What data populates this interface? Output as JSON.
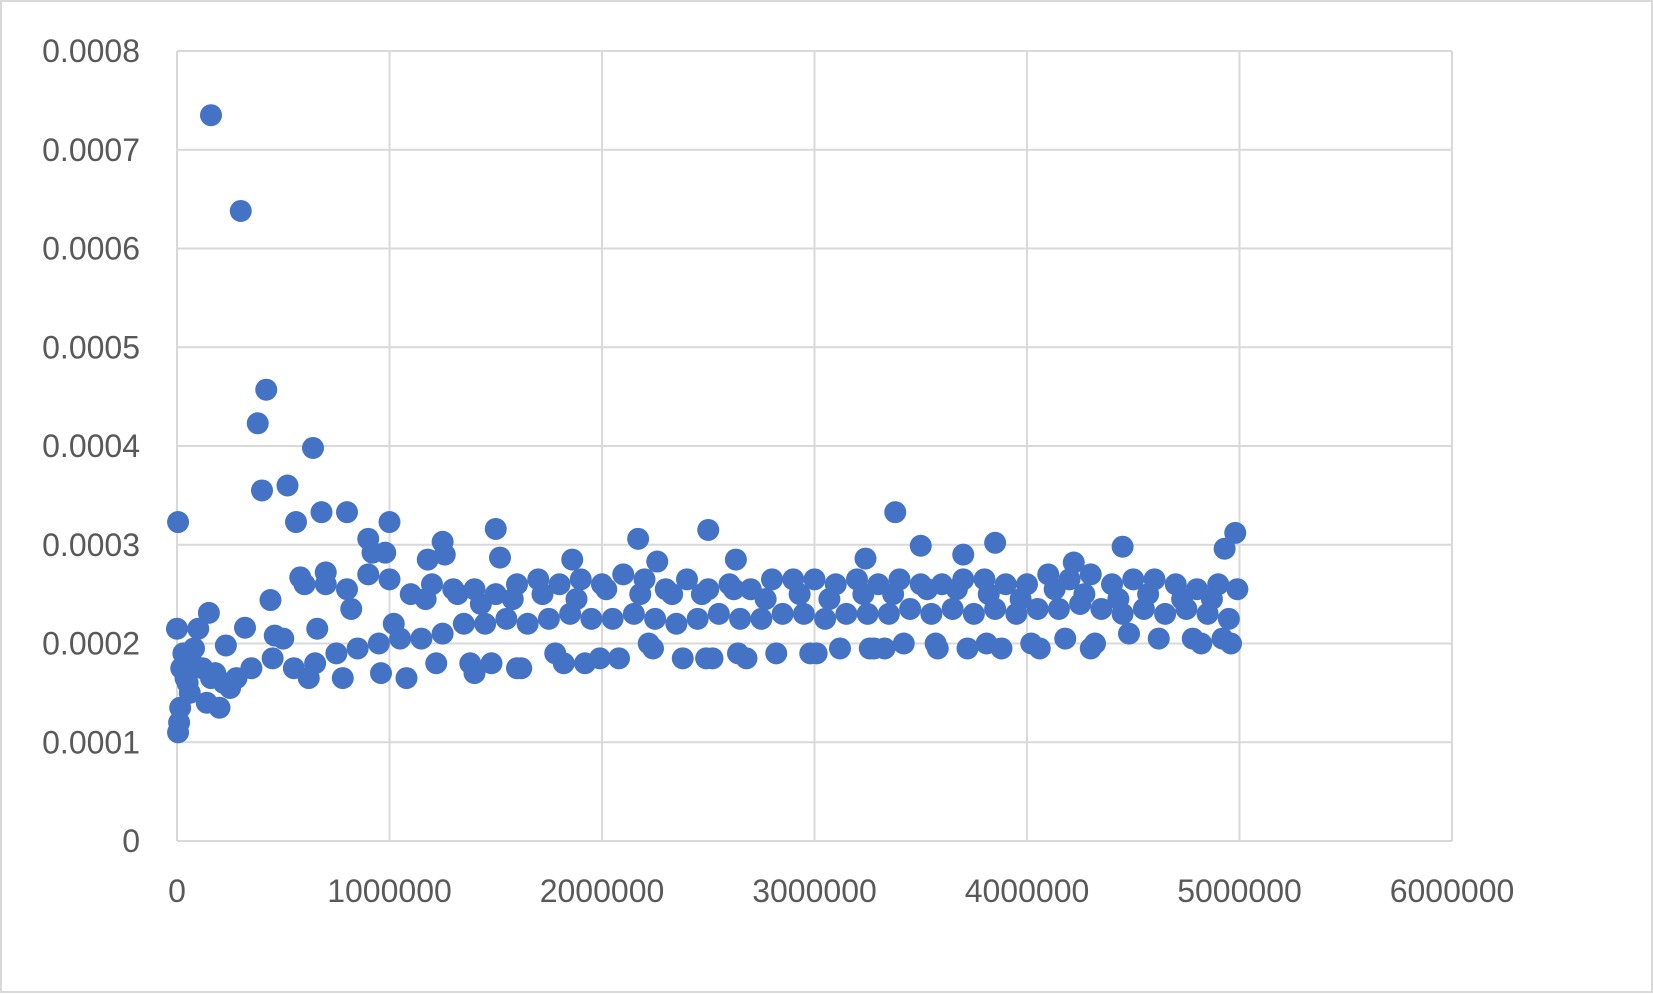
{
  "chart_data": {
    "type": "scatter",
    "title": "",
    "xlabel": "",
    "ylabel": "",
    "xlim": [
      0,
      6000000
    ],
    "ylim": [
      0,
      0.0008
    ],
    "xticks": [
      "0",
      "1000000",
      "2000000",
      "3000000",
      "4000000",
      "5000000",
      "6000000"
    ],
    "yticks": [
      "0",
      "0.0001",
      "0.0002",
      "0.0003",
      "0.0004",
      "0.0005",
      "0.0006",
      "0.0007",
      "0.0008"
    ],
    "grid": true,
    "legend": "none",
    "marker_color": "#4472c4",
    "series": [
      {
        "x": [
          0,
          5000,
          10000,
          15000,
          20000,
          30000,
          40000,
          50000,
          60000,
          70000,
          80000,
          100000,
          120000,
          140000,
          160000,
          180000,
          200000,
          220000,
          250000,
          280000,
          160000,
          300000,
          380000,
          420000,
          400000,
          520000,
          560000,
          640000,
          680000,
          800000,
          1000000,
          1250000,
          1500000,
          2500000,
          3380000,
          3850000,
          4980000,
          5000,
          150000,
          230000,
          320000,
          440000,
          460000,
          580000,
          700000,
          900000,
          920000,
          980000,
          1180000,
          1260000,
          1520000,
          1860000,
          2170000,
          2260000,
          2630000,
          3240000,
          3500000,
          3700000,
          4220000,
          4450000,
          4930000,
          350000,
          450000,
          550000,
          650000,
          750000,
          850000,
          950000,
          1050000,
          1150000,
          1250000,
          1350000,
          1450000,
          1550000,
          1650000,
          1750000,
          1850000,
          1950000,
          2050000,
          2150000,
          2250000,
          2350000,
          2450000,
          2550000,
          2650000,
          2750000,
          2850000,
          2950000,
          3050000,
          3150000,
          3250000,
          3350000,
          3450000,
          3550000,
          3650000,
          3750000,
          3850000,
          3950000,
          4050000,
          4150000,
          4250000,
          4350000,
          4450000,
          4550000,
          4650000,
          4750000,
          4850000,
          4950000,
          600000,
          700000,
          800000,
          900000,
          1000000,
          1100000,
          1200000,
          1300000,
          1400000,
          1500000,
          1600000,
          1700000,
          1800000,
          1900000,
          2000000,
          2100000,
          2200000,
          2300000,
          2400000,
          2500000,
          2600000,
          2700000,
          2800000,
          2900000,
          3000000,
          3100000,
          3200000,
          3300000,
          3400000,
          3500000,
          3600000,
          3700000,
          3800000,
          3900000,
          4000000,
          4100000,
          4200000,
          4300000,
          4400000,
          4500000,
          4600000,
          4700000,
          4800000,
          4900000,
          4990000,
          620000,
          780000,
          960000,
          1080000,
          1220000,
          1380000,
          1480000,
          1620000,
          1780000,
          1920000,
          2080000,
          2220000,
          2380000,
          2520000,
          2680000,
          2820000,
          2980000,
          3120000,
          3280000,
          3420000,
          3580000,
          3720000,
          3880000,
          4020000,
          4180000,
          4320000,
          4480000,
          4620000,
          4780000,
          4920000,
          500000,
          660000,
          820000,
          1020000,
          1170000,
          1320000,
          1430000,
          1580000,
          1720000,
          1880000,
          2020000,
          2180000,
          2330000,
          2470000,
          2620000,
          2770000,
          2930000,
          3070000,
          3230000,
          3370000,
          3530000,
          3670000,
          3820000,
          3970000,
          4130000,
          4270000,
          4430000,
          4570000,
          4730000,
          4870000,
          1400000,
          1600000,
          1820000,
          1990000,
          2240000,
          2490000,
          2640000,
          3010000,
          3260000,
          3330000,
          3570000,
          3810000,
          4060000,
          4300000,
          4820000,
          4960000
        ],
        "y": [
          0.000215,
          0.00011,
          0.00012,
          0.000135,
          0.000175,
          0.00019,
          0.000165,
          0.00016,
          0.00015,
          0.00018,
          0.000195,
          0.000215,
          0.000175,
          0.00014,
          0.000165,
          0.00017,
          0.000135,
          0.00016,
          0.000155,
          0.000165,
          0.000735,
          0.000638,
          0.000423,
          0.000457,
          0.000355,
          0.00036,
          0.000323,
          0.000398,
          0.000333,
          0.000333,
          0.000323,
          0.000303,
          0.000316,
          0.000315,
          0.000333,
          0.000302,
          0.000312,
          0.000323,
          0.000231,
          0.000198,
          0.000216,
          0.000244,
          0.000208,
          0.000267,
          0.000272,
          0.000306,
          0.000292,
          0.000292,
          0.000285,
          0.00029,
          0.000287,
          0.000285,
          0.000306,
          0.000283,
          0.000285,
          0.000286,
          0.000299,
          0.00029,
          0.000282,
          0.000298,
          0.000296,
          0.000175,
          0.000185,
          0.000175,
          0.00018,
          0.00019,
          0.000195,
          0.0002,
          0.000205,
          0.000205,
          0.00021,
          0.00022,
          0.00022,
          0.000225,
          0.00022,
          0.000225,
          0.00023,
          0.000225,
          0.000225,
          0.00023,
          0.000225,
          0.00022,
          0.000225,
          0.00023,
          0.000225,
          0.000225,
          0.00023,
          0.00023,
          0.000225,
          0.00023,
          0.00023,
          0.00023,
          0.000235,
          0.00023,
          0.000235,
          0.00023,
          0.000235,
          0.00023,
          0.000235,
          0.000235,
          0.00024,
          0.000235,
          0.00023,
          0.000235,
          0.00023,
          0.000235,
          0.00023,
          0.000225,
          0.00026,
          0.00026,
          0.000255,
          0.00027,
          0.000265,
          0.00025,
          0.00026,
          0.000255,
          0.000255,
          0.00025,
          0.00026,
          0.000265,
          0.00026,
          0.000265,
          0.00026,
          0.00027,
          0.000265,
          0.000255,
          0.000265,
          0.000255,
          0.00026,
          0.000255,
          0.000265,
          0.000265,
          0.000265,
          0.00026,
          0.000265,
          0.00026,
          0.000265,
          0.00026,
          0.00026,
          0.000265,
          0.000265,
          0.00026,
          0.00026,
          0.00027,
          0.000265,
          0.00027,
          0.00026,
          0.000265,
          0.000265,
          0.00026,
          0.000255,
          0.00026,
          0.000255,
          0.000165,
          0.000165,
          0.00017,
          0.000165,
          0.00018,
          0.00018,
          0.00018,
          0.000175,
          0.00019,
          0.00018,
          0.000185,
          0.0002,
          0.000185,
          0.000185,
          0.000185,
          0.00019,
          0.00019,
          0.000195,
          0.000195,
          0.0002,
          0.000195,
          0.000195,
          0.000195,
          0.0002,
          0.000205,
          0.0002,
          0.00021,
          0.000205,
          0.000205,
          0.000205,
          0.000205,
          0.000215,
          0.000235,
          0.00022,
          0.000245,
          0.00025,
          0.00024,
          0.000245,
          0.00025,
          0.000245,
          0.000255,
          0.00025,
          0.00025,
          0.00025,
          0.000255,
          0.000245,
          0.00025,
          0.000245,
          0.00025,
          0.00025,
          0.000255,
          0.000255,
          0.00025,
          0.000245,
          0.000255,
          0.00025,
          0.000245,
          0.00025,
          0.000245,
          0.000245,
          0.00017,
          0.000175,
          0.00018,
          0.000185,
          0.000195,
          0.000185,
          0.00019,
          0.00019,
          0.000195,
          0.000195,
          0.0002,
          0.0002,
          0.000195,
          0.000195,
          0.0002,
          0.0002
        ]
      }
    ]
  }
}
